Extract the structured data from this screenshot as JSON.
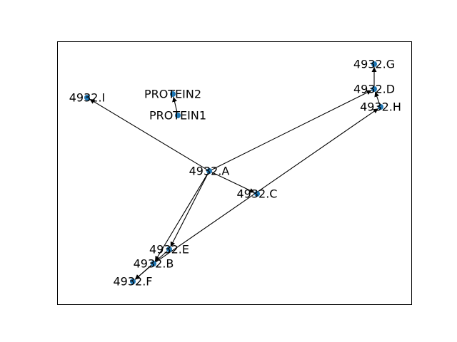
{
  "graph": {
    "node_color": "#1f77b4",
    "edge_color": "#000000",
    "directed": true,
    "nodes": [
      {
        "id": "4932.A",
        "label": "4932.A"
      },
      {
        "id": "4932.B",
        "label": "4932.B"
      },
      {
        "id": "4932.C",
        "label": "4932.C"
      },
      {
        "id": "4932.D",
        "label": "4932.D"
      },
      {
        "id": "4932.E",
        "label": "4932.E"
      },
      {
        "id": "4932.F",
        "label": "4932.F"
      },
      {
        "id": "4932.G",
        "label": "4932.G"
      },
      {
        "id": "4932.H",
        "label": "4932.H"
      },
      {
        "id": "4932.I",
        "label": "4932.I"
      },
      {
        "id": "PROTEIN1",
        "label": "PROTEIN1"
      },
      {
        "id": "PROTEIN2",
        "label": "PROTEIN2"
      }
    ],
    "edges": [
      {
        "source": "4932.A",
        "target": "4932.I"
      },
      {
        "source": "4932.A",
        "target": "4932.D"
      },
      {
        "source": "4932.A",
        "target": "4932.C"
      },
      {
        "source": "4932.A",
        "target": "4932.E"
      },
      {
        "source": "4932.A",
        "target": "4932.B"
      },
      {
        "source": "4932.B",
        "target": "4932.H"
      },
      {
        "source": "4932.B",
        "target": "4932.F"
      },
      {
        "source": "4932.E",
        "target": "4932.F"
      },
      {
        "source": "4932.H",
        "target": "4932.D"
      },
      {
        "source": "4932.D",
        "target": "4932.G"
      },
      {
        "source": "PROTEIN1",
        "target": "PROTEIN2"
      }
    ]
  }
}
